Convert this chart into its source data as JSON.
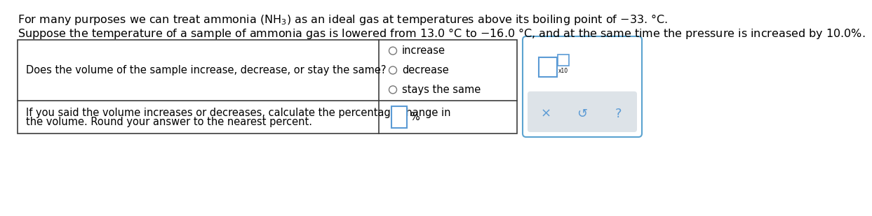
{
  "line1_parts": [
    "For many purposes we can treat ammonia ",
    "(NH",
    "3",
    ")",
    " as an ideal gas at temperatures above its boiling point of −33. °C."
  ],
  "line2": "Suppose the temperature of a sample of ammonia gas is lowered from 13.0 °C to −16.0 °C, and at the same time the pressure is increased by 10.0%.",
  "question_text": "Does the volume of the sample increase, decrease, or stay the same?",
  "options": [
    "increase",
    "decrease",
    "stays the same"
  ],
  "bottom_left_text_line1": "If you said the volume increases or decreases, calculate the percentage change in",
  "bottom_left_text_line2": "the volume. Round your answer to the nearest percent.",
  "percent_label": "%",
  "bg_color": "#ffffff",
  "table_border_color": "#3d3d3d",
  "side_box_border_color": "#5ba3d0",
  "side_box_bg": "#ffffff",
  "side_box_bottom_bg": "#dde3e8",
  "radio_color": "#777777",
  "text_color": "#000000",
  "input_box_color": "#5b9bd5",
  "icon_color": "#5b9bd5",
  "font_size_main": 11.5,
  "font_size_table": 10.5
}
